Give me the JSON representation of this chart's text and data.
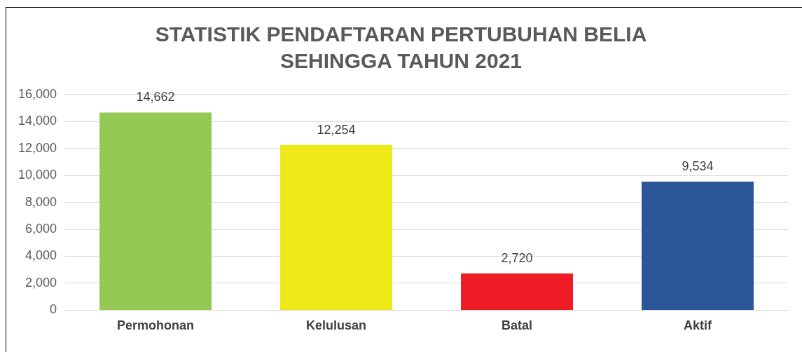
{
  "chart_data": {
    "type": "bar",
    "title": "STATISTIK PENDAFTARAN PERTUBUHAN BELIA SEHINGGA TAHUN 2021",
    "categories": [
      "Permohonan",
      "Kelulusan",
      "Batal",
      "Aktif"
    ],
    "values": [
      14662,
      12254,
      2720,
      9534
    ],
    "colors": [
      "#92c853",
      "#f0e91a",
      "#ee1c24",
      "#2a5597"
    ],
    "value_labels": [
      "14,662",
      "12,254",
      "2,720",
      "9,534"
    ],
    "ylim": [
      0,
      16000
    ],
    "yticks": [
      0,
      {
        "value": 2000,
        "label": "2,000"
      },
      {
        "value": 4000,
        "label": "4,000"
      },
      {
        "value": 6000,
        "label": "6,000"
      },
      {
        "value": 8000,
        "label": "8,000"
      },
      {
        "value": 10000,
        "label": "10,000"
      },
      {
        "value": 12000,
        "label": "12,000"
      },
      {
        "value": 14000,
        "label": "14,000"
      },
      {
        "value": 16000,
        "label": "16,000"
      }
    ],
    "grid": "y",
    "legend": false
  }
}
